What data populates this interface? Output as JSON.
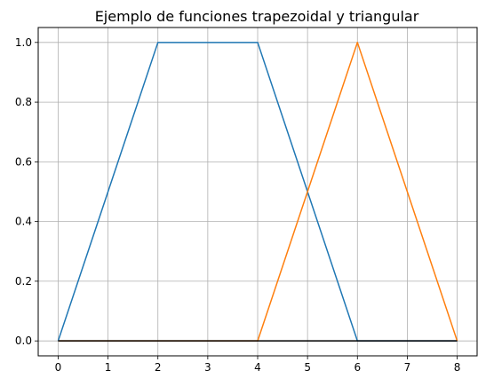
{
  "chart_data": {
    "type": "line",
    "title": "Ejemplo de funciones trapezoidal y triangular",
    "xlabel": "",
    "ylabel": "",
    "xlim": [
      -0.4,
      8.4
    ],
    "ylim": [
      -0.05,
      1.05
    ],
    "grid": true,
    "legend": "none",
    "x_ticks": [
      0,
      1,
      2,
      3,
      4,
      5,
      6,
      7,
      8
    ],
    "x_tick_labels": [
      "0",
      "1",
      "2",
      "3",
      "4",
      "5",
      "6",
      "7",
      "8"
    ],
    "y_ticks": [
      0.0,
      0.2,
      0.4,
      0.6,
      0.8,
      1.0
    ],
    "y_tick_labels": [
      "0.0",
      "0.2",
      "0.4",
      "0.6",
      "0.8",
      "1.0"
    ],
    "series": [
      {
        "color": "#1f77b4",
        "x": [
          0,
          2,
          4,
          6,
          8
        ],
        "y": [
          0,
          1,
          1,
          0,
          0
        ]
      },
      {
        "color": "#ff7f0e",
        "x": [
          0,
          4,
          6,
          8
        ],
        "y": [
          0,
          0,
          1,
          0
        ]
      },
      {
        "color": "#000000",
        "x": [
          0,
          8
        ],
        "y": [
          0,
          0
        ]
      }
    ]
  }
}
